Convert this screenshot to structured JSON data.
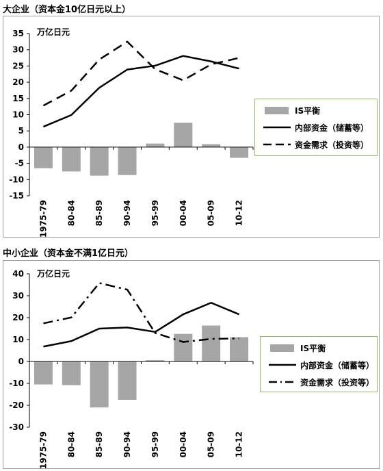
{
  "chart_data": [
    {
      "type": "bar+line",
      "title": "大企业（资本金10亿日元以上）",
      "unit_label": "万亿日元",
      "categories": [
        "1975-79",
        "80-84",
        "85-89",
        "90-94",
        "95-99",
        "00-04",
        "05-09",
        "10-12"
      ],
      "ylim": [
        -15,
        35
      ],
      "yticks": [
        -15,
        -10,
        -5,
        0,
        5,
        10,
        15,
        20,
        25,
        30,
        35
      ],
      "legend_position": "right",
      "series": [
        {
          "name": "IS平衡",
          "kind": "bar",
          "color": "#a6a6a6",
          "values": [
            -6.5,
            -7.5,
            -8.8,
            -8.6,
            1.1,
            7.5,
            0.9,
            -3.3
          ]
        },
        {
          "name": "内部资金（储蓄等）",
          "kind": "line",
          "style": "solid",
          "color": "#000000",
          "values": [
            6.3,
            9.9,
            18.3,
            23.9,
            25.1,
            28.1,
            26.4,
            24.2
          ]
        },
        {
          "name": "资金需求（投资等）",
          "kind": "line",
          "style": "dashed",
          "color": "#000000",
          "values": [
            12.8,
            17.4,
            27.0,
            32.5,
            24.0,
            20.6,
            25.5,
            27.5
          ]
        }
      ]
    },
    {
      "type": "bar+line",
      "title": "中小企业（资本金不满1亿日元）",
      "unit_label": "万亿日元",
      "categories": [
        "1975-79",
        "80-84",
        "85-89",
        "90-94",
        "95-99",
        "00-04",
        "05-09",
        "10-12"
      ],
      "ylim": [
        -30,
        40
      ],
      "yticks": [
        -30,
        -20,
        -10,
        0,
        10,
        20,
        30,
        40
      ],
      "legend_position": "right",
      "series": [
        {
          "name": "IS平衡",
          "kind": "bar",
          "color": "#a6a6a6",
          "values": [
            -10.5,
            -10.8,
            -21.0,
            -17.5,
            0.6,
            12.6,
            16.4,
            11.1
          ]
        },
        {
          "name": "内部资金（储蓄等）",
          "kind": "line",
          "style": "solid",
          "color": "#000000",
          "values": [
            6.8,
            9.3,
            15.0,
            15.5,
            13.5,
            21.5,
            26.8,
            21.5
          ]
        },
        {
          "name": "资金需求（投资等）",
          "kind": "line",
          "style": "dashdot",
          "color": "#000000",
          "values": [
            17.4,
            20.1,
            35.8,
            32.8,
            13.0,
            8.9,
            10.3,
            10.5
          ]
        }
      ]
    }
  ]
}
